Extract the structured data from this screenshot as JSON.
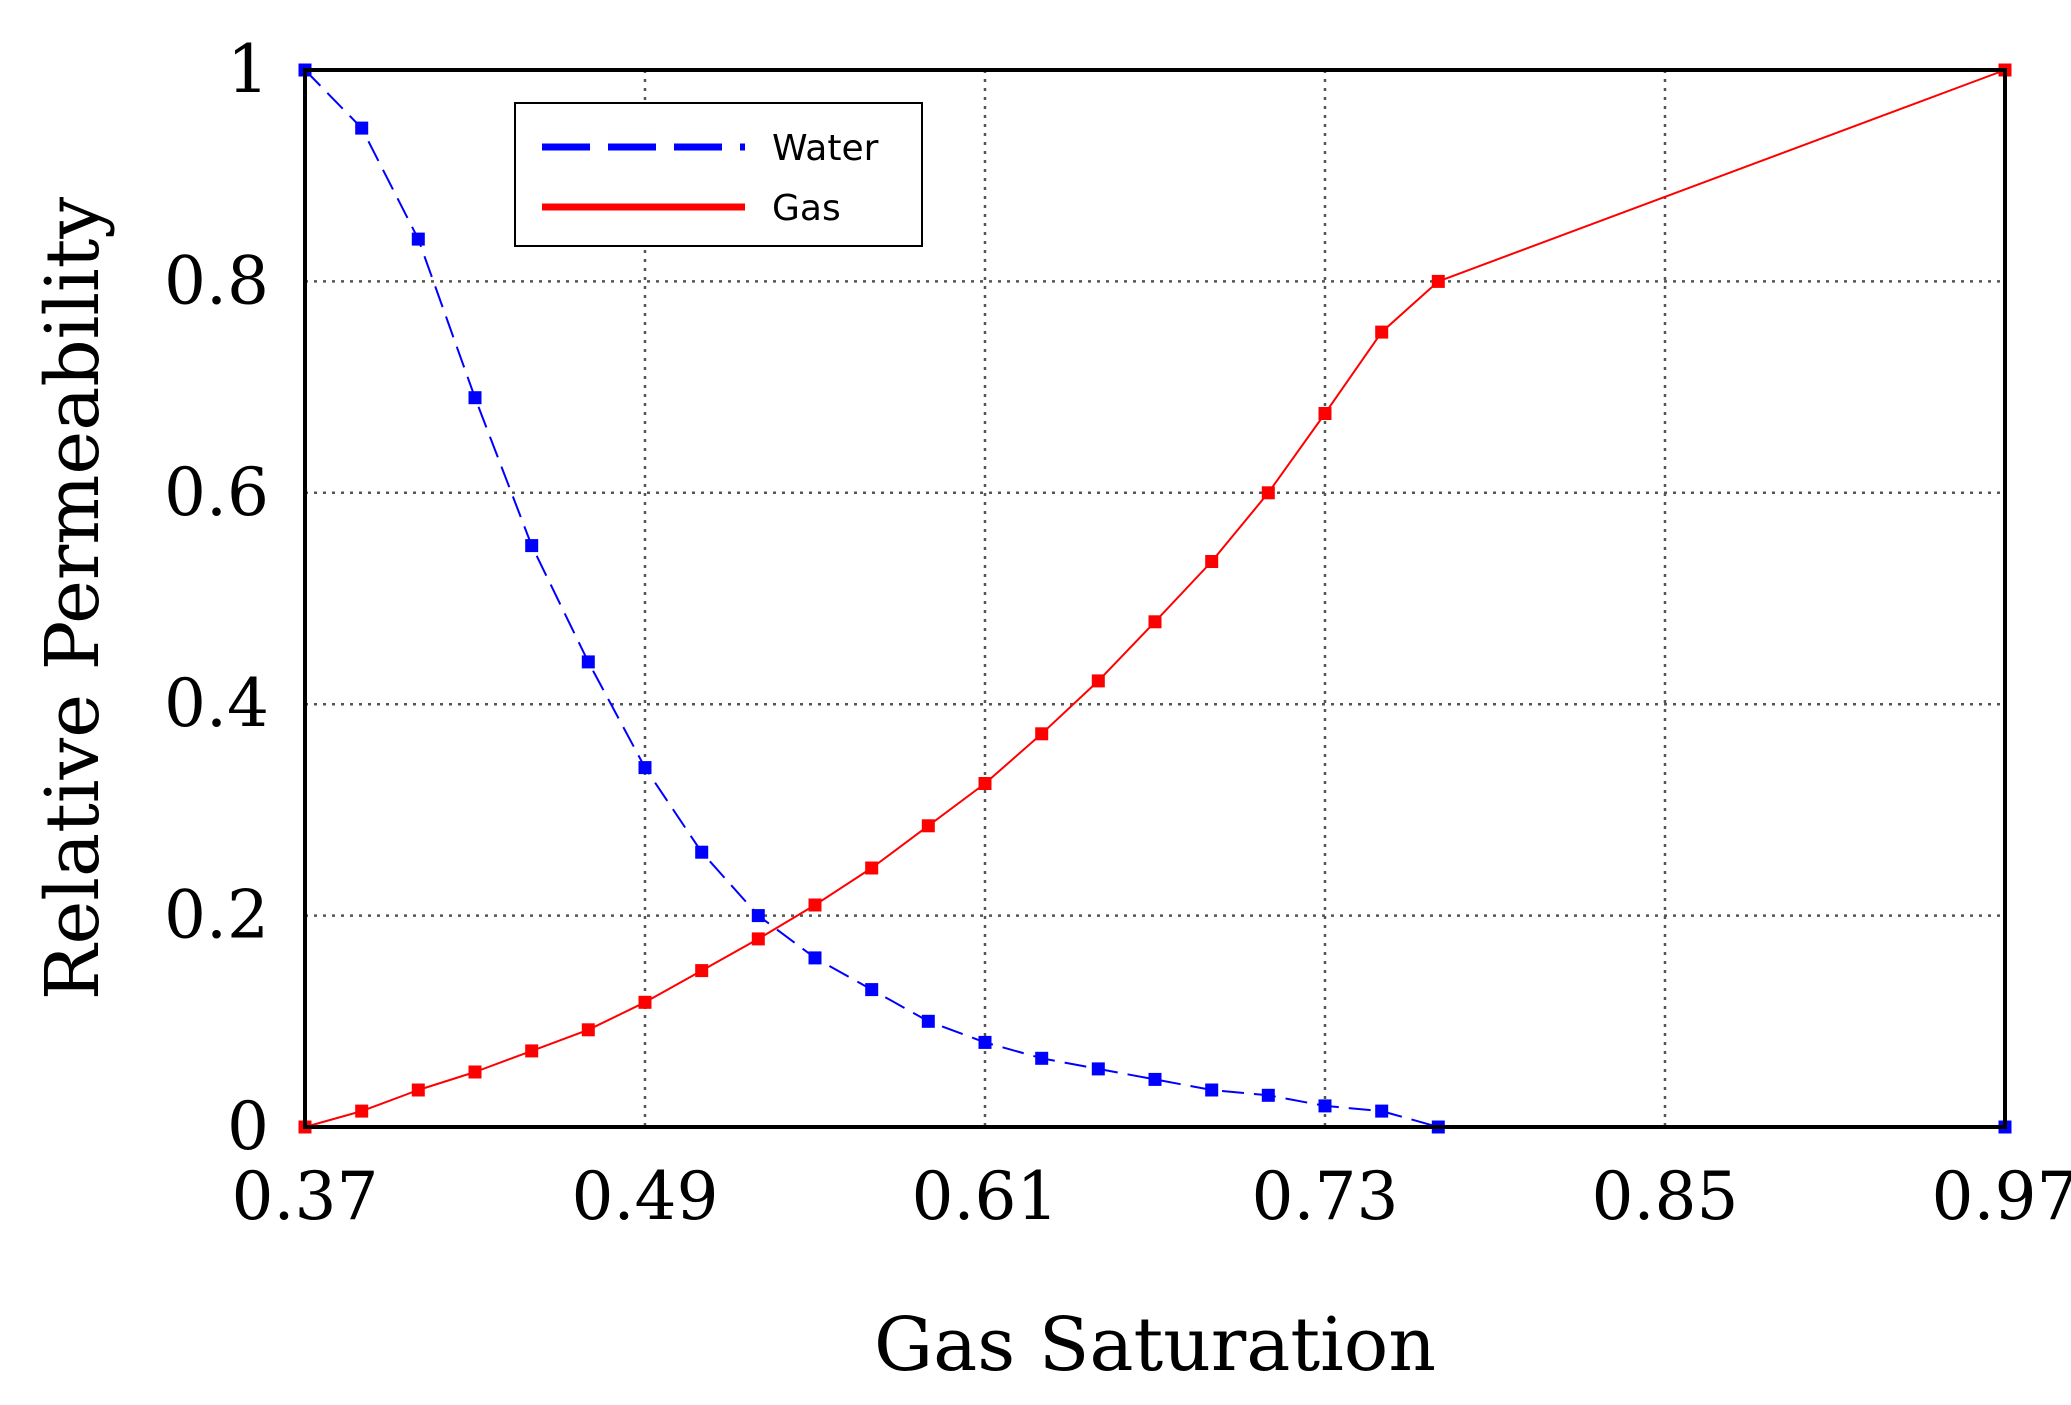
{
  "chart_data": {
    "type": "line",
    "title": "",
    "xlabel": "Gas Saturation",
    "ylabel": "Relative Permeability",
    "xlim": [
      0.37,
      0.97
    ],
    "ylim": [
      0,
      1
    ],
    "grid": true,
    "legend_position": "top-left",
    "xticks": [
      0.37,
      0.49,
      0.61,
      0.73,
      0.85,
      0.97
    ],
    "xtick_labels": [
      "0.37",
      "0.49",
      "0.61",
      "0.73",
      "0.85",
      "0.97"
    ],
    "yticks": [
      0,
      0.2,
      0.4,
      0.6,
      0.8,
      1
    ],
    "ytick_labels": [
      "0",
      "0.2",
      "0.4",
      "0.6",
      "0.8",
      "1"
    ],
    "series": [
      {
        "name": "Water",
        "color": "#0000ff",
        "style": "dashed",
        "x": [
          0.37,
          0.39,
          0.41,
          0.43,
          0.45,
          0.47,
          0.49,
          0.51,
          0.53,
          0.55,
          0.57,
          0.59,
          0.61,
          0.63,
          0.65,
          0.67,
          0.69,
          0.71,
          0.73,
          0.75,
          0.77,
          0.97
        ],
        "y": [
          1.0,
          0.945,
          0.84,
          0.69,
          0.55,
          0.44,
          0.34,
          0.26,
          0.2,
          0.16,
          0.13,
          0.1,
          0.08,
          0.065,
          0.055,
          0.045,
          0.035,
          0.03,
          0.02,
          0.015,
          0.0,
          0.0
        ]
      },
      {
        "name": "Gas",
        "color": "#ff0000",
        "style": "solid",
        "x": [
          0.37,
          0.39,
          0.41,
          0.43,
          0.45,
          0.47,
          0.49,
          0.51,
          0.53,
          0.55,
          0.57,
          0.59,
          0.61,
          0.63,
          0.65,
          0.67,
          0.69,
          0.71,
          0.73,
          0.75,
          0.77,
          0.97
        ],
        "y": [
          0.0,
          0.015,
          0.035,
          0.052,
          0.072,
          0.092,
          0.118,
          0.148,
          0.178,
          0.21,
          0.245,
          0.285,
          0.325,
          0.372,
          0.422,
          0.478,
          0.535,
          0.6,
          0.675,
          0.752,
          0.8,
          1.0
        ]
      }
    ]
  }
}
